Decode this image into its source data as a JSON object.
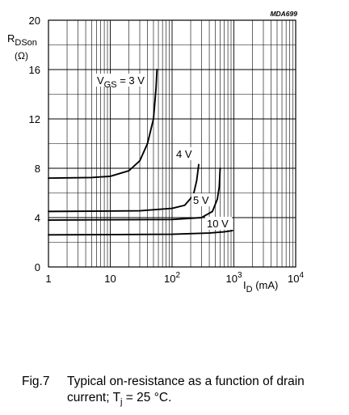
{
  "chart_data": {
    "type": "line",
    "code": "MDA699",
    "xscale": "log",
    "xlim": [
      1,
      10000
    ],
    "ylim": [
      0,
      20
    ],
    "xticks": [
      {
        "v": 1,
        "base": "1",
        "exp": ""
      },
      {
        "v": 10,
        "base": "10",
        "exp": ""
      },
      {
        "v": 100,
        "base": "10",
        "exp": "2"
      },
      {
        "v": 1000,
        "base": "10",
        "exp": "3"
      },
      {
        "v": 10000,
        "base": "10",
        "exp": "4"
      }
    ],
    "yticks": [
      0,
      4,
      8,
      12,
      16,
      20
    ],
    "ylabel": {
      "main": "R",
      "sub": "DSon",
      "unit": "(Ω)"
    },
    "xlabel": {
      "main": "I",
      "sub": "D",
      "unit": " (mA)"
    },
    "grid": true,
    "series": [
      {
        "name": "VGS = 3 V",
        "label_main": "V",
        "label_sub": "GS",
        "label_rest": " = 3 V",
        "points": [
          [
            1,
            7.2
          ],
          [
            5,
            7.25
          ],
          [
            10,
            7.35
          ],
          [
            20,
            7.8
          ],
          [
            30,
            8.6
          ],
          [
            40,
            10.0
          ],
          [
            50,
            12.0
          ],
          [
            55,
            14.5
          ],
          [
            57,
            16.0
          ]
        ]
      },
      {
        "name": "4 V",
        "label_main": "4 V",
        "label_sub": "",
        "label_rest": "",
        "points": [
          [
            1,
            4.5
          ],
          [
            30,
            4.55
          ],
          [
            100,
            4.75
          ],
          [
            160,
            5.0
          ],
          [
            220,
            5.8
          ],
          [
            250,
            7.0
          ],
          [
            270,
            8.3
          ]
        ]
      },
      {
        "name": "5 V",
        "label_main": "5 V",
        "label_sub": "",
        "label_rest": "",
        "points": [
          [
            1,
            3.8
          ],
          [
            100,
            3.85
          ],
          [
            300,
            4.0
          ],
          [
            450,
            4.5
          ],
          [
            540,
            5.5
          ],
          [
            580,
            6.5
          ],
          [
            600,
            8.0
          ]
        ]
      },
      {
        "name": "10 V",
        "label_main": "10 V",
        "label_sub": "",
        "label_rest": "",
        "points": [
          [
            1,
            2.6
          ],
          [
            100,
            2.65
          ],
          [
            400,
            2.75
          ],
          [
            700,
            2.85
          ],
          [
            950,
            2.95
          ]
        ]
      }
    ]
  },
  "caption": {
    "number": "Fig.7",
    "text_before": "Typical on-resistance as a function of drain current; T",
    "sub": "j",
    "text_after": " = 25 °C."
  }
}
